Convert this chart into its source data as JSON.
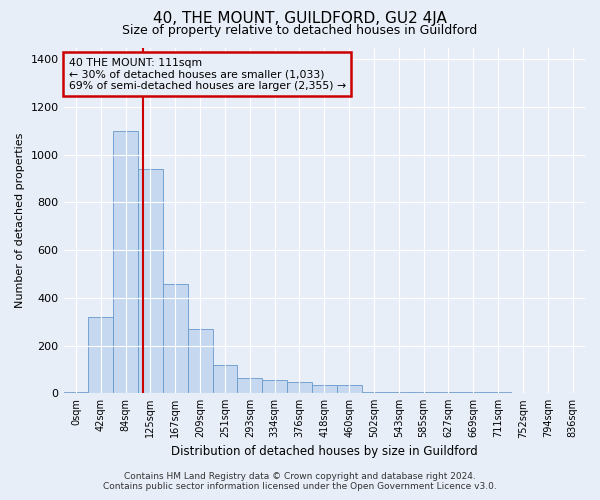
{
  "title": "40, THE MOUNT, GUILDFORD, GU2 4JA",
  "subtitle": "Size of property relative to detached houses in Guildford",
  "xlabel": "Distribution of detached houses by size in Guildford",
  "ylabel": "Number of detached properties",
  "categories": [
    "0sqm",
    "42sqm",
    "84sqm",
    "125sqm",
    "167sqm",
    "209sqm",
    "251sqm",
    "293sqm",
    "334sqm",
    "376sqm",
    "418sqm",
    "460sqm",
    "502sqm",
    "543sqm",
    "585sqm",
    "627sqm",
    "669sqm",
    "711sqm",
    "752sqm",
    "794sqm",
    "836sqm"
  ],
  "values": [
    5,
    320,
    1100,
    940,
    460,
    270,
    120,
    65,
    55,
    45,
    35,
    35,
    4,
    4,
    4,
    4,
    4,
    4,
    0,
    0,
    0
  ],
  "bar_color": "#c5d8f0",
  "bar_edge_color": "#6699cc",
  "background_color": "#e8eef8",
  "grid_color": "#ffffff",
  "ylim": [
    0,
    1450
  ],
  "yticks": [
    0,
    200,
    400,
    600,
    800,
    1000,
    1200,
    1400
  ],
  "red_line_x": 2.7,
  "annotation_text": "40 THE MOUNT: 111sqm\n← 30% of detached houses are smaller (1,033)\n69% of semi-detached houses are larger (2,355) →",
  "annotation_color": "#cc0000",
  "footer_line1": "Contains HM Land Registry data © Crown copyright and database right 2024.",
  "footer_line2": "Contains public sector information licensed under the Open Government Licence v3.0."
}
